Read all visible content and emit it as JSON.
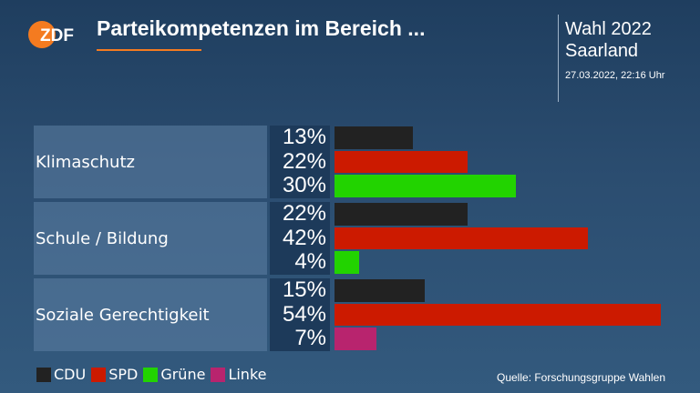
{
  "header": {
    "logo_text": "ZDF",
    "title": "Parteikompetenzen im Bereich ...",
    "election_line1": "Wahl 2022",
    "election_line2": "Saarland",
    "timestamp": "27.03.2022, 22:16 Uhr"
  },
  "colors": {
    "CDU": "#222222",
    "SPD": "#cc1a00",
    "Grüne": "#22d300",
    "Linke": "#b8246e",
    "accent": "#f47b20"
  },
  "chart_data": {
    "type": "bar",
    "orientation": "horizontal",
    "categories": [
      "Klimaschutz",
      "Schule / Bildung",
      "Soziale Gerechtigkeit"
    ],
    "groups": [
      {
        "category": "Klimaschutz",
        "bars": [
          {
            "party": "CDU",
            "value": 13,
            "label": "13%"
          },
          {
            "party": "SPD",
            "value": 22,
            "label": "22%"
          },
          {
            "party": "Grüne",
            "value": 30,
            "label": "30%"
          }
        ]
      },
      {
        "category": "Schule / Bildung",
        "bars": [
          {
            "party": "CDU",
            "value": 22,
            "label": "22%"
          },
          {
            "party": "SPD",
            "value": 42,
            "label": "42%"
          },
          {
            "party": "Grüne",
            "value": 4,
            "label": "4%"
          }
        ]
      },
      {
        "category": "Soziale Gerechtigkeit",
        "bars": [
          {
            "party": "CDU",
            "value": 15,
            "label": "15%"
          },
          {
            "party": "SPD",
            "value": 54,
            "label": "54%"
          },
          {
            "party": "Linke",
            "value": 7,
            "label": "7%"
          }
        ]
      }
    ],
    "value_unit": "%",
    "xlim": [
      0,
      54
    ],
    "grid": false,
    "legend": [
      "CDU",
      "SPD",
      "Grüne",
      "Linke"
    ],
    "legend_position": "bottom-left"
  },
  "footer": {
    "source": "Quelle: Forschungsgruppe Wahlen"
  }
}
